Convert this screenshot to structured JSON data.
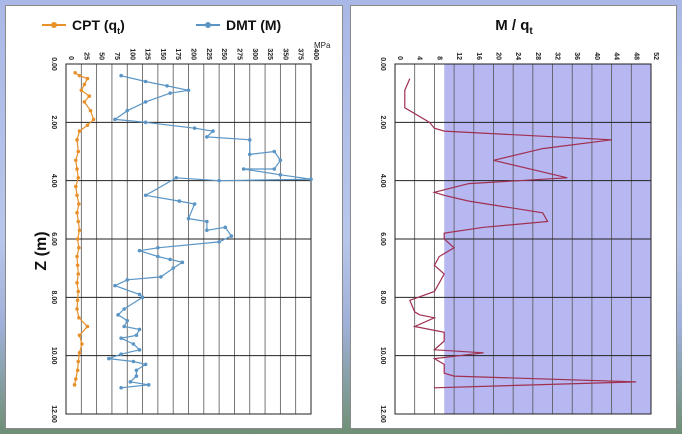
{
  "chart_data": [
    {
      "type": "line",
      "ylabel": "Z (m)",
      "x_unit": "MPa",
      "xlim": [
        0,
        400
      ],
      "ylim": [
        0,
        12
      ],
      "x_ticks": [
        "0",
        "25",
        "50",
        "75",
        "100",
        "125",
        "150",
        "175",
        "200",
        "225",
        "250",
        "275",
        "300",
        "325",
        "350",
        "375",
        "400"
      ],
      "y_ticks": [
        "0.00",
        "2.00",
        "4.00",
        "6.00",
        "8.00",
        "10.00",
        "12.00"
      ],
      "grid": true,
      "legend": "top",
      "series": [
        {
          "name": "CPT (q",
          "name_sub": "t",
          "name_end": ")",
          "color": "#e8902a",
          "points": [
            [
              15,
              0.3
            ],
            [
              22,
              0.4
            ],
            [
              35,
              0.5
            ],
            [
              30,
              0.7
            ],
            [
              25,
              0.9
            ],
            [
              38,
              1.1
            ],
            [
              30,
              1.3
            ],
            [
              40,
              1.6
            ],
            [
              45,
              1.9
            ],
            [
              35,
              2.1
            ],
            [
              22,
              2.3
            ],
            [
              18,
              2.6
            ],
            [
              20,
              3.0
            ],
            [
              16,
              3.3
            ],
            [
              18,
              3.6
            ],
            [
              20,
              3.9
            ],
            [
              16,
              4.2
            ],
            [
              18,
              4.5
            ],
            [
              21,
              4.8
            ],
            [
              18,
              5.1
            ],
            [
              20,
              5.4
            ],
            [
              22,
              5.7
            ],
            [
              19,
              6.0
            ],
            [
              21,
              6.3
            ],
            [
              18,
              6.6
            ],
            [
              19,
              6.9
            ],
            [
              20,
              7.2
            ],
            [
              18,
              7.5
            ],
            [
              20,
              7.8
            ],
            [
              19,
              8.1
            ],
            [
              18,
              8.4
            ],
            [
              21,
              8.7
            ],
            [
              35,
              9.0
            ],
            [
              22,
              9.3
            ],
            [
              26,
              9.6
            ],
            [
              22,
              9.9
            ],
            [
              20,
              10.2
            ],
            [
              19,
              10.5
            ],
            [
              16,
              10.8
            ],
            [
              14,
              11.0
            ]
          ]
        },
        {
          "name": "DMT (M)",
          "color": "#5a95c5",
          "points": [
            [
              90,
              0.4
            ],
            [
              130,
              0.6
            ],
            [
              165,
              0.75
            ],
            [
              200,
              0.9
            ],
            [
              170,
              1.0
            ],
            [
              130,
              1.3
            ],
            [
              100,
              1.6
            ],
            [
              80,
              1.9
            ],
            [
              130,
              2.0
            ],
            [
              210,
              2.2
            ],
            [
              240,
              2.3
            ],
            [
              230,
              2.5
            ],
            [
              300,
              2.6
            ],
            [
              300,
              3.1
            ],
            [
              340,
              3.0
            ],
            [
              350,
              3.3
            ],
            [
              340,
              3.6
            ],
            [
              290,
              3.6
            ],
            [
              350,
              3.8
            ],
            [
              400,
              3.95
            ],
            [
              250,
              4.0
            ],
            [
              180,
              3.9
            ],
            [
              130,
              4.5
            ],
            [
              185,
              4.7
            ],
            [
              210,
              4.8
            ],
            [
              200,
              5.3
            ],
            [
              230,
              5.4
            ],
            [
              230,
              5.7
            ],
            [
              260,
              5.6
            ],
            [
              270,
              5.9
            ],
            [
              250,
              6.1
            ],
            [
              150,
              6.3
            ],
            [
              120,
              6.4
            ],
            [
              150,
              6.6
            ],
            [
              170,
              6.7
            ],
            [
              190,
              6.8
            ],
            [
              175,
              7.0
            ],
            [
              155,
              7.3
            ],
            [
              100,
              7.4
            ],
            [
              80,
              7.6
            ],
            [
              120,
              7.9
            ],
            [
              125,
              8.0
            ],
            [
              95,
              8.4
            ],
            [
              85,
              8.6
            ],
            [
              100,
              8.8
            ],
            [
              95,
              9.0
            ],
            [
              120,
              9.1
            ],
            [
              115,
              9.3
            ],
            [
              90,
              9.4
            ],
            [
              110,
              9.6
            ],
            [
              120,
              9.8
            ],
            [
              90,
              9.95
            ],
            [
              70,
              10.1
            ],
            [
              110,
              10.2
            ],
            [
              130,
              10.3
            ],
            [
              115,
              10.5
            ],
            [
              115,
              10.7
            ],
            [
              105,
              10.9
            ],
            [
              135,
              11.0
            ],
            [
              90,
              11.1
            ]
          ]
        }
      ]
    },
    {
      "type": "line",
      "title": "M / q",
      "title_sub": "t",
      "xlim": [
        0,
        52
      ],
      "ylim": [
        0,
        12
      ],
      "x_ticks": [
        "0",
        "4",
        "8",
        "12",
        "16",
        "20",
        "24",
        "28",
        "32",
        "36",
        "40",
        "44",
        "48",
        "52"
      ],
      "y_ticks": [
        "0.00",
        "2.00",
        "4.00",
        "6.00",
        "8.00",
        "10.00",
        "12.00"
      ],
      "grid": true,
      "shaded_x_range": [
        10,
        52
      ],
      "shade_color": "#aaaaf0",
      "series": [
        {
          "color": "#a03050",
          "points": [
            [
              3,
              0.5
            ],
            [
              2,
              0.9
            ],
            [
              2,
              1.5
            ],
            [
              7,
              2.0
            ],
            [
              8,
              2.2
            ],
            [
              10,
              2.3
            ],
            [
              44,
              2.6
            ],
            [
              30,
              2.9
            ],
            [
              20,
              3.3
            ],
            [
              35,
              3.9
            ],
            [
              15,
              4.1
            ],
            [
              8,
              4.4
            ],
            [
              10,
              4.5
            ],
            [
              15,
              4.7
            ],
            [
              30,
              5.1
            ],
            [
              31,
              5.4
            ],
            [
              18,
              5.6
            ],
            [
              10,
              5.8
            ],
            [
              10,
              6.0
            ],
            [
              12,
              6.3
            ],
            [
              9,
              6.6
            ],
            [
              8,
              6.9
            ],
            [
              10,
              7.2
            ],
            [
              9,
              7.5
            ],
            [
              8,
              7.8
            ],
            [
              3,
              8.1
            ],
            [
              4,
              8.5
            ],
            [
              5,
              8.6
            ],
            [
              8,
              8.7
            ],
            [
              4,
              9.0
            ],
            [
              10,
              9.2
            ],
            [
              10,
              9.5
            ],
            [
              8,
              9.8
            ],
            [
              18,
              9.9
            ],
            [
              8,
              10.1
            ],
            [
              10,
              10.3
            ],
            [
              10,
              10.6
            ],
            [
              12,
              10.7
            ],
            [
              49,
              10.9
            ],
            [
              8,
              11.1
            ]
          ]
        }
      ]
    }
  ]
}
